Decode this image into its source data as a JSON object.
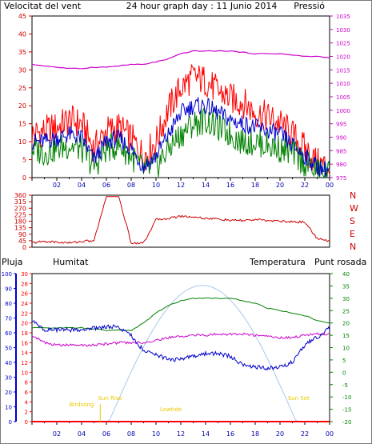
{
  "header": {
    "left_title": "Velocitat del vent",
    "center_title": "24 hour graph day : 11 Junio 2014",
    "right_title": "Pressió"
  },
  "lower_header": {
    "rain": "Pluja",
    "humidity": "Humitat",
    "temperature": "Temperatura",
    "dewpoint": "Punt rosada"
  },
  "annotations": {
    "first_light": "Birdsong",
    "sunrise": "Sun Rise",
    "lowtide": "Lowtide",
    "sunset": "Sun Set"
  },
  "colors": {
    "wind_gust": "#ff0000",
    "wind_avg": "#0000cc",
    "wind_low": "#008000",
    "pressure": "#cc00cc",
    "direction": "#cc0000",
    "rain": "#ff0000",
    "humidity": "#0000cc",
    "temperature": "#008000",
    "dewpoint": "#cc00cc",
    "solar": "#a8c8ee",
    "axis_left": "#cc0000",
    "axis_right": "#cc00cc",
    "annotation": "#e8c800"
  },
  "x_ticks": [
    "02",
    "04",
    "06",
    "08",
    "10",
    "12",
    "14",
    "16",
    "18",
    "20",
    "22",
    "00"
  ],
  "chart_data": [
    {
      "type": "line",
      "title": "24 hour graph day : 11 Junio 2014",
      "xlabel": "",
      "ylabel_left": "Velocitat del vent",
      "ylabel_right": "Pressió",
      "x_hours": [
        0,
        1,
        2,
        3,
        4,
        5,
        6,
        7,
        8,
        9,
        10,
        11,
        12,
        13,
        14,
        15,
        16,
        17,
        18,
        19,
        20,
        21,
        22,
        23,
        24
      ],
      "ylim_left": [
        0,
        45
      ],
      "ylim_right": [
        975,
        1035
      ],
      "left_ticks": [
        0,
        5,
        10,
        15,
        20,
        25,
        30,
        35,
        40,
        45
      ],
      "right_ticks": [
        975,
        980,
        985,
        990,
        995,
        1000,
        1005,
        1010,
        1015,
        1020,
        1025,
        1030,
        1035
      ],
      "series": [
        {
          "name": "Velocitat del vent",
          "axis": "left",
          "role": "gust",
          "values": [
            12,
            13,
            14,
            16,
            15,
            8,
            13,
            14,
            11,
            6,
            10,
            19,
            25,
            28,
            27,
            24,
            22,
            21,
            18,
            17,
            15,
            12,
            8,
            4,
            3
          ]
        },
        {
          "axis": "left",
          "role": "average",
          "values": [
            10,
            10,
            11,
            12,
            11,
            5,
            10,
            11,
            8,
            3,
            6,
            12,
            18,
            20,
            20,
            18,
            16,
            15,
            14,
            13,
            12,
            9,
            6,
            3,
            2
          ]
        },
        {
          "axis": "left",
          "role": "low",
          "values": [
            8,
            7,
            8,
            9,
            8,
            3,
            8,
            9,
            6,
            2,
            3,
            8,
            12,
            15,
            16,
            14,
            12,
            10,
            10,
            9,
            8,
            7,
            4,
            2,
            1
          ]
        },
        {
          "name": "Pressió",
          "axis": "right",
          "values": [
            1017,
            1016.5,
            1016,
            1015.5,
            1015.5,
            1016,
            1016,
            1016.5,
            1017,
            1017,
            1018,
            1019,
            1021,
            1022,
            1022,
            1022,
            1022,
            1021.5,
            1021,
            1021,
            1021,
            1020.5,
            1020,
            1020,
            1019.5
          ]
        }
      ]
    },
    {
      "type": "line",
      "xlabel": "",
      "ylabel_right": "N W S E N",
      "y_tick_values": [
        0,
        45,
        90,
        135,
        180,
        225,
        270,
        315,
        360
      ],
      "direction_labels": [
        "N",
        "W",
        "S",
        "E",
        "N"
      ],
      "ylim": [
        0,
        360
      ],
      "x_hours": [
        0,
        1,
        2,
        3,
        4,
        5,
        6,
        7,
        8,
        9,
        10,
        11,
        12,
        13,
        14,
        15,
        16,
        17,
        18,
        19,
        20,
        21,
        22,
        23,
        24
      ],
      "series": [
        {
          "axis": "left",
          "values": [
            30,
            40,
            35,
            30,
            40,
            45,
            350,
            350,
            30,
            30,
            190,
            200,
            215,
            210,
            200,
            195,
            185,
            185,
            190,
            185,
            180,
            175,
            175,
            60,
            40
          ]
        }
      ]
    },
    {
      "type": "line",
      "xlabel": "",
      "x_hours": [
        0,
        1,
        2,
        3,
        4,
        5,
        6,
        7,
        8,
        9,
        10,
        11,
        12,
        13,
        14,
        15,
        16,
        17,
        18,
        19,
        20,
        21,
        22,
        23,
        24
      ],
      "axes": {
        "humidity": {
          "ylim": [
            0,
            100
          ],
          "ticks": [
            0,
            10,
            20,
            30,
            40,
            50,
            60,
            70,
            80,
            90,
            100
          ]
        },
        "rain": {
          "ylim": [
            0,
            30
          ],
          "ticks": [
            0,
            2,
            4,
            6,
            8,
            10,
            12,
            14,
            16,
            18,
            20,
            22,
            24,
            26,
            28,
            30
          ]
        },
        "temperature": {
          "ylim": [
            -20,
            40
          ],
          "ticks": [
            -20,
            -15,
            -10,
            -5,
            0,
            5,
            10,
            15,
            20,
            25,
            30,
            35,
            40
          ]
        }
      },
      "series": [
        {
          "name": "Pluja",
          "axis": "rain",
          "values": [
            0,
            0,
            0,
            0,
            0,
            0,
            0,
            0,
            0,
            0,
            0,
            0,
            0,
            0,
            0,
            0,
            0,
            0,
            0,
            0,
            0,
            0,
            0,
            0,
            0
          ]
        },
        {
          "name": "Humitat",
          "axis": "humidity",
          "values": [
            68,
            62,
            62,
            62,
            62,
            63,
            64,
            64,
            58,
            48,
            45,
            42,
            42,
            44,
            46,
            46,
            44,
            38,
            37,
            36,
            37,
            40,
            52,
            57,
            63
          ]
        },
        {
          "name": "Temperatura",
          "axis": "temperature",
          "values": [
            18,
            18,
            18,
            18,
            18,
            17.5,
            17,
            17,
            17,
            20,
            24,
            27,
            29,
            30,
            30,
            30,
            30,
            29,
            28,
            26,
            25,
            24,
            23,
            21,
            20
          ]
        },
        {
          "name": "Punt rosada",
          "axis": "temperature",
          "values": [
            15,
            12,
            11,
            11,
            11,
            11,
            11.5,
            12,
            12,
            12,
            13,
            14,
            14.5,
            15,
            15,
            15.5,
            15.5,
            15.5,
            15,
            14.5,
            14,
            14,
            15,
            15.5,
            15.5
          ]
        },
        {
          "axis": "humidity",
          "role": "solar",
          "values": [
            0,
            0,
            0,
            0,
            0,
            0,
            0,
            0,
            20,
            40,
            60,
            78,
            88,
            92,
            92,
            90,
            80,
            65,
            45,
            22,
            5,
            0,
            0,
            0,
            0
          ]
        }
      ]
    }
  ]
}
